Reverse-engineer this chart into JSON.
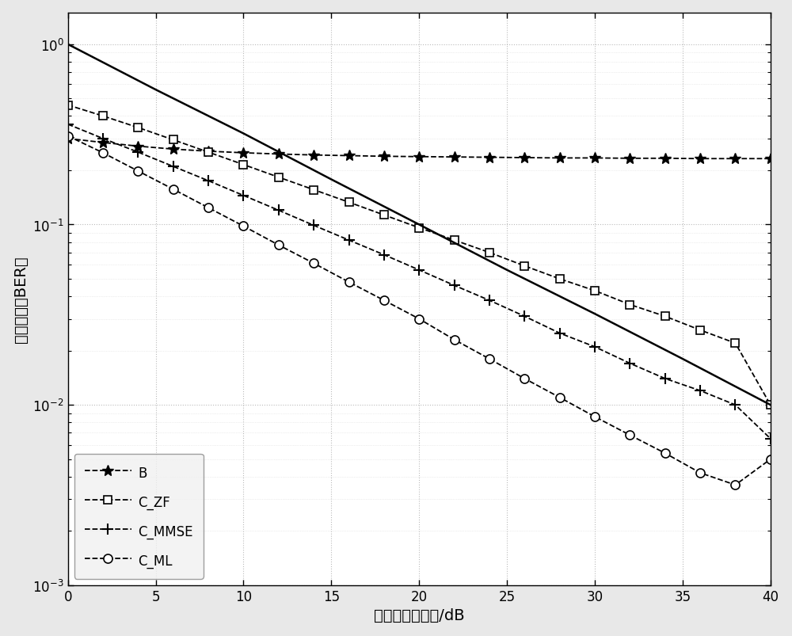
{
  "snr": [
    0,
    2,
    4,
    6,
    8,
    10,
    12,
    14,
    16,
    18,
    20,
    22,
    24,
    26,
    28,
    30,
    32,
    34,
    36,
    38,
    40
  ],
  "B": [
    0.3,
    0.285,
    0.272,
    0.262,
    0.255,
    0.25,
    0.246,
    0.243,
    0.241,
    0.239,
    0.238,
    0.237,
    0.236,
    0.235,
    0.234,
    0.234,
    0.233,
    0.233,
    0.232,
    0.232,
    0.232
  ],
  "C_ZF": [
    0.46,
    0.4,
    0.345,
    0.295,
    0.252,
    0.215,
    0.183,
    0.156,
    0.133,
    0.113,
    0.096,
    0.082,
    0.07,
    0.059,
    0.05,
    0.043,
    0.036,
    0.031,
    0.026,
    0.022,
    0.01
  ],
  "C_MMSE": [
    0.36,
    0.3,
    0.252,
    0.21,
    0.175,
    0.145,
    0.12,
    0.099,
    0.082,
    0.068,
    0.056,
    0.046,
    0.038,
    0.031,
    0.025,
    0.021,
    0.017,
    0.014,
    0.012,
    0.01,
    0.0065
  ],
  "C_ML": [
    0.31,
    0.25,
    0.198,
    0.157,
    0.124,
    0.098,
    0.077,
    0.061,
    0.048,
    0.038,
    0.03,
    0.023,
    0.018,
    0.014,
    0.011,
    0.0086,
    0.0068,
    0.0054,
    0.0042,
    0.0036,
    0.005
  ],
  "ref_snr_pts": [
    0,
    5,
    10,
    15,
    20,
    25,
    30,
    35,
    40
  ],
  "ref_ber_pts": [
    1.0,
    0.56,
    0.32,
    0.178,
    0.1,
    0.056,
    0.032,
    0.018,
    0.01
  ],
  "xlabel": "系统平均信噪比/dB",
  "ylabel": "误比特率（BER）",
  "xlim": [
    0,
    40
  ],
  "ylim_min": 0.001,
  "ylim_max": 1.5,
  "line_color": "#000000",
  "bg_color": "#ffffff",
  "fig_bg": "#e8e8e8",
  "legend_labels": [
    "B",
    "C_ZF",
    "C_MMSE",
    "C_ML"
  ],
  "xticks": [
    0,
    5,
    10,
    15,
    20,
    25,
    30,
    35,
    40
  ]
}
